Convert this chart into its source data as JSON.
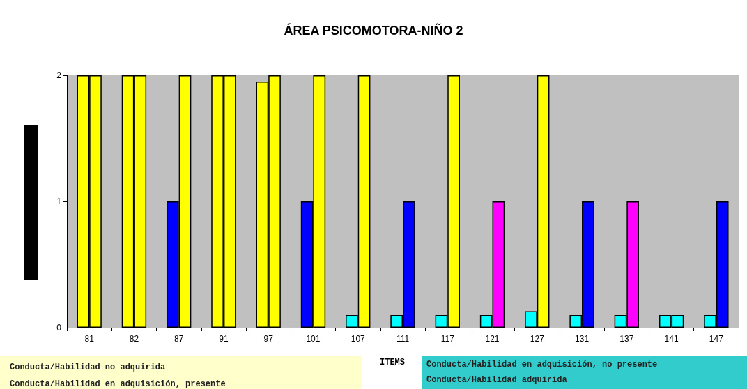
{
  "chart_data": {
    "type": "bar",
    "title": "ÁREA PSICOMOTORA-NIÑO 2",
    "xlabel": "ITEMS",
    "categories": [
      "81",
      "82",
      "87",
      "91",
      "97",
      "101",
      "107",
      "111",
      "117",
      "121",
      "127",
      "131",
      "137",
      "141",
      "147"
    ],
    "series": [
      {
        "colors": [
          "#ffff00",
          "#ffff00",
          "#0000ff",
          "#ffff00",
          "#ffff00",
          "#0000ff",
          "#00ffff",
          "#00ffff",
          "#00ffff",
          "#00ffff",
          "#00ffff",
          "#00ffff",
          "#00ffff",
          "#00ffff",
          "#00ffff"
        ],
        "values": [
          2,
          2,
          1,
          2,
          1.95,
          1,
          0.1,
          0.1,
          0.1,
          0.1,
          0.13,
          0.1,
          0.1,
          0.1,
          0.1
        ]
      },
      {
        "colors": [
          "#ffff00",
          "#ffff00",
          "#ffff00",
          "#ffff00",
          "#ffff00",
          "#ffff00",
          "#ffff00",
          "#0000ff",
          "#ffff00",
          "#ff00ff",
          "#ffff00",
          "#0000ff",
          "#ff00ff",
          "#00ffff",
          "#0000ff"
        ],
        "values": [
          2,
          2,
          2,
          2,
          2,
          2,
          2,
          1,
          2,
          1,
          2,
          1,
          1,
          0.1,
          1
        ]
      }
    ],
    "ylim": [
      0,
      2
    ],
    "yticks": [
      0,
      1,
      2
    ],
    "grid": false,
    "annotations": [
      "Conducta/Habilidad no adquirida",
      "Conducta/Habilidad en adquisición, presente",
      "Conducta/Habilidad en adquisición, no presente",
      "Conducta/Habilidad adquirida"
    ]
  }
}
